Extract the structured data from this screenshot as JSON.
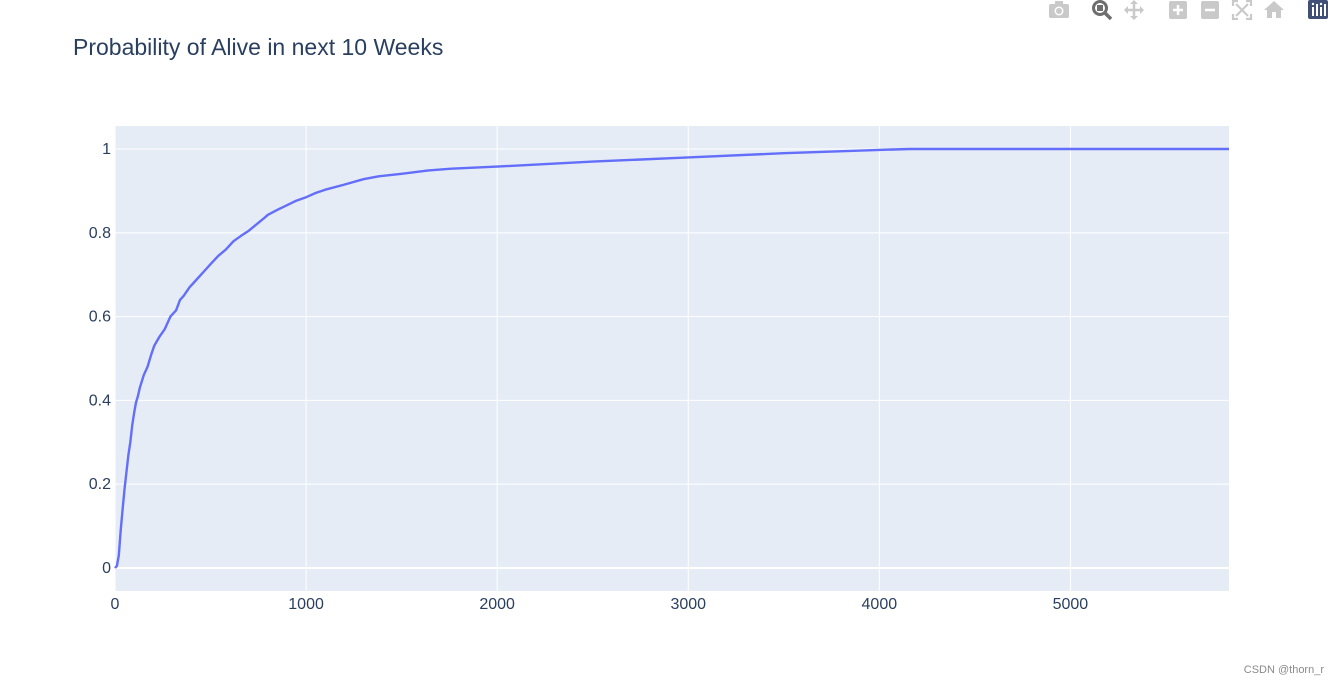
{
  "modebar": {
    "buttons": [
      "camera-icon",
      "zoom-icon",
      "pan-icon",
      "zoom-in-icon",
      "zoom-out-icon",
      "autoscale-icon",
      "home-icon",
      "plotly-logo-icon"
    ],
    "colors": {
      "inactive": "#c9c9c9",
      "active": "#6e6e6e",
      "logo": "#3f4f75"
    }
  },
  "chart_data": {
    "type": "line",
    "title": "Probability of Alive in next 10 Weeks",
    "xlabel": "",
    "ylabel": "",
    "xlim": [
      0,
      5830
    ],
    "ylim": [
      -0.055,
      1.055
    ],
    "x_ticks": [
      0,
      1000,
      2000,
      3000,
      4000,
      5000
    ],
    "x_tick_labels": [
      "0",
      "1000",
      "2000",
      "3000",
      "4000",
      "5000"
    ],
    "y_ticks": [
      0,
      0.2,
      0.4,
      0.6,
      0.8,
      1
    ],
    "y_tick_labels": [
      "0",
      "0.2",
      "0.4",
      "0.6",
      "0.8",
      "1"
    ],
    "grid": true,
    "legend": "none",
    "colors": {
      "line": "#636efa",
      "plot_bg": "#e5ecf6",
      "grid": "#ffffff",
      "tick_text": "#2a3f5f"
    },
    "series": [
      {
        "x": [
          0,
          10,
          20,
          30,
          40,
          50,
          60,
          70,
          80,
          90,
          100,
          110,
          120,
          130,
          150,
          170,
          190,
          205,
          230,
          260,
          290,
          320,
          340,
          360,
          390,
          420,
          450,
          470,
          500,
          540,
          580,
          620,
          660,
          700,
          740,
          780,
          800,
          850,
          900,
          950,
          1000,
          1050,
          1100,
          1200,
          1300,
          1380,
          1500,
          1640,
          1760,
          2000,
          2500,
          3000,
          3500,
          4000,
          4160,
          5000,
          5830
        ],
        "y": [
          0.0,
          0.005,
          0.03,
          0.09,
          0.14,
          0.19,
          0.23,
          0.27,
          0.3,
          0.34,
          0.37,
          0.395,
          0.41,
          0.43,
          0.46,
          0.48,
          0.51,
          0.53,
          0.55,
          0.57,
          0.6,
          0.615,
          0.64,
          0.65,
          0.67,
          0.685,
          0.7,
          0.71,
          0.725,
          0.745,
          0.76,
          0.78,
          0.793,
          0.805,
          0.82,
          0.835,
          0.843,
          0.855,
          0.866,
          0.877,
          0.885,
          0.895,
          0.903,
          0.915,
          0.928,
          0.935,
          0.941,
          0.949,
          0.953,
          0.958,
          0.97,
          0.98,
          0.99,
          0.998,
          1.0,
          1.0,
          1.0
        ]
      }
    ]
  },
  "watermark": "CSDN @thorn_r"
}
